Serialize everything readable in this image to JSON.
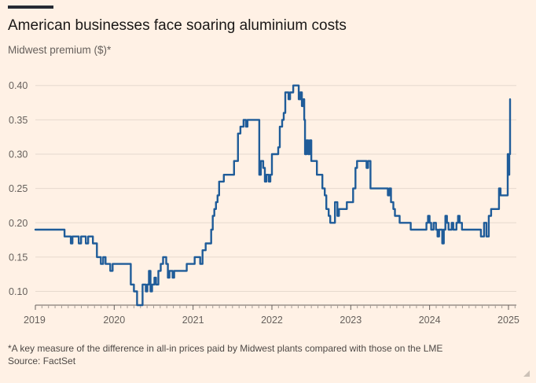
{
  "header": {
    "title": "American businesses face soaring aluminium costs",
    "subtitle": "Midwest premium ($)*"
  },
  "footer": {
    "footnote": "*A key measure of the difference in all-in prices paid by Midwest plants compared with those on the LME",
    "source": "Source: FactSet"
  },
  "colors": {
    "line": "#1F5C99",
    "grid": "#E6D9CE",
    "axis": "#66605C",
    "background": "#FFF1E5"
  },
  "chart_data": {
    "type": "line",
    "title": "American businesses face soaring aluminium costs",
    "subtitle": "Midwest premium ($)*",
    "xlabel": "",
    "ylabel": "",
    "xlim": [
      2019.0,
      2025.1
    ],
    "ylim": [
      0.08,
      0.41
    ],
    "yticks": [
      0.1,
      0.15,
      0.2,
      0.25,
      0.3,
      0.35,
      0.4
    ],
    "ytick_labels": [
      "0.10",
      "0.15",
      "0.20",
      "0.25",
      "0.30",
      "0.35",
      "0.40"
    ],
    "xticks": [
      2019,
      2020,
      2021,
      2022,
      2023,
      2024,
      2025
    ],
    "xtick_labels": [
      "2019",
      "2020",
      "2021",
      "2022",
      "2023",
      "2024",
      "2025"
    ],
    "grid": true,
    "legend": "none",
    "series": [
      {
        "values": [
          [
            2019.0,
            0.19
          ],
          [
            2019.35,
            0.19
          ],
          [
            2019.37,
            0.18
          ],
          [
            2019.43,
            0.18
          ],
          [
            2019.45,
            0.17
          ],
          [
            2019.47,
            0.18
          ],
          [
            2019.52,
            0.18
          ],
          [
            2019.55,
            0.17
          ],
          [
            2019.58,
            0.18
          ],
          [
            2019.62,
            0.18
          ],
          [
            2019.64,
            0.17
          ],
          [
            2019.67,
            0.18
          ],
          [
            2019.71,
            0.18
          ],
          [
            2019.73,
            0.17
          ],
          [
            2019.76,
            0.17
          ],
          [
            2019.78,
            0.15
          ],
          [
            2019.81,
            0.15
          ],
          [
            2019.83,
            0.14
          ],
          [
            2019.86,
            0.15
          ],
          [
            2019.89,
            0.14
          ],
          [
            2019.93,
            0.14
          ],
          [
            2019.95,
            0.13
          ],
          [
            2019.98,
            0.14
          ],
          [
            2020.0,
            0.14
          ],
          [
            2020.02,
            0.14
          ],
          [
            2020.08,
            0.14
          ],
          [
            2020.1,
            0.14
          ],
          [
            2020.2,
            0.14
          ],
          [
            2020.21,
            0.11
          ],
          [
            2020.23,
            0.11
          ],
          [
            2020.25,
            0.1
          ],
          [
            2020.27,
            0.1
          ],
          [
            2020.29,
            0.08
          ],
          [
            2020.34,
            0.08
          ],
          [
            2020.36,
            0.11
          ],
          [
            2020.39,
            0.11
          ],
          [
            2020.4,
            0.1
          ],
          [
            2020.42,
            0.11
          ],
          [
            2020.44,
            0.13
          ],
          [
            2020.46,
            0.1
          ],
          [
            2020.48,
            0.11
          ],
          [
            2020.51,
            0.12
          ],
          [
            2020.53,
            0.11
          ],
          [
            2020.56,
            0.13
          ],
          [
            2020.59,
            0.14
          ],
          [
            2020.62,
            0.15
          ],
          [
            2020.66,
            0.14
          ],
          [
            2020.68,
            0.12
          ],
          [
            2020.7,
            0.13
          ],
          [
            2020.74,
            0.12
          ],
          [
            2020.76,
            0.13
          ],
          [
            2020.8,
            0.13
          ],
          [
            2020.82,
            0.13
          ],
          [
            2020.9,
            0.13
          ],
          [
            2020.92,
            0.14
          ],
          [
            2021.0,
            0.14
          ],
          [
            2021.02,
            0.15
          ],
          [
            2021.07,
            0.15
          ],
          [
            2021.09,
            0.14
          ],
          [
            2021.12,
            0.16
          ],
          [
            2021.16,
            0.17
          ],
          [
            2021.2,
            0.17
          ],
          [
            2021.23,
            0.19
          ],
          [
            2021.25,
            0.21
          ],
          [
            2021.27,
            0.22
          ],
          [
            2021.29,
            0.23
          ],
          [
            2021.31,
            0.24
          ],
          [
            2021.33,
            0.26
          ],
          [
            2021.37,
            0.26
          ],
          [
            2021.39,
            0.27
          ],
          [
            2021.5,
            0.27
          ],
          [
            2021.52,
            0.29
          ],
          [
            2021.55,
            0.29
          ],
          [
            2021.57,
            0.33
          ],
          [
            2021.6,
            0.34
          ],
          [
            2021.62,
            0.34
          ],
          [
            2021.64,
            0.35
          ],
          [
            2021.67,
            0.34
          ],
          [
            2021.69,
            0.35
          ],
          [
            2021.82,
            0.35
          ],
          [
            2021.84,
            0.27
          ],
          [
            2021.86,
            0.29
          ],
          [
            2021.89,
            0.28
          ],
          [
            2021.91,
            0.26
          ],
          [
            2021.93,
            0.27
          ],
          [
            2021.96,
            0.26
          ],
          [
            2021.98,
            0.27
          ],
          [
            2022.0,
            0.3
          ],
          [
            2022.05,
            0.3
          ],
          [
            2022.08,
            0.31
          ],
          [
            2022.1,
            0.34
          ],
          [
            2022.13,
            0.35
          ],
          [
            2022.15,
            0.36
          ],
          [
            2022.17,
            0.39
          ],
          [
            2022.19,
            0.39
          ],
          [
            2022.21,
            0.38
          ],
          [
            2022.23,
            0.39
          ],
          [
            2022.25,
            0.39
          ],
          [
            2022.27,
            0.4
          ],
          [
            2022.32,
            0.4
          ],
          [
            2022.34,
            0.38
          ],
          [
            2022.36,
            0.39
          ],
          [
            2022.38,
            0.37
          ],
          [
            2022.4,
            0.38
          ],
          [
            2022.41,
            0.35
          ],
          [
            2022.42,
            0.3
          ],
          [
            2022.44,
            0.32
          ],
          [
            2022.46,
            0.3
          ],
          [
            2022.48,
            0.32
          ],
          [
            2022.5,
            0.29
          ],
          [
            2022.55,
            0.29
          ],
          [
            2022.57,
            0.27
          ],
          [
            2022.62,
            0.27
          ],
          [
            2022.64,
            0.25
          ],
          [
            2022.67,
            0.24
          ],
          [
            2022.69,
            0.22
          ],
          [
            2022.72,
            0.21
          ],
          [
            2022.74,
            0.2
          ],
          [
            2022.78,
            0.2
          ],
          [
            2022.8,
            0.23
          ],
          [
            2022.83,
            0.21
          ],
          [
            2022.85,
            0.22
          ],
          [
            2022.93,
            0.22
          ],
          [
            2022.95,
            0.23
          ],
          [
            2023.0,
            0.23
          ],
          [
            2023.03,
            0.25
          ],
          [
            2023.06,
            0.28
          ],
          [
            2023.08,
            0.29
          ],
          [
            2023.18,
            0.29
          ],
          [
            2023.2,
            0.28
          ],
          [
            2023.22,
            0.29
          ],
          [
            2023.25,
            0.25
          ],
          [
            2023.45,
            0.25
          ],
          [
            2023.47,
            0.24
          ],
          [
            2023.49,
            0.25
          ],
          [
            2023.51,
            0.23
          ],
          [
            2023.54,
            0.22
          ],
          [
            2023.56,
            0.21
          ],
          [
            2023.6,
            0.21
          ],
          [
            2023.62,
            0.2
          ],
          [
            2023.74,
            0.2
          ],
          [
            2023.76,
            0.19
          ],
          [
            2023.95,
            0.19
          ],
          [
            2023.96,
            0.2
          ],
          [
            2023.98,
            0.21
          ],
          [
            2024.0,
            0.2
          ],
          [
            2024.02,
            0.19
          ],
          [
            2024.05,
            0.2
          ],
          [
            2024.08,
            0.19
          ],
          [
            2024.1,
            0.18
          ],
          [
            2024.12,
            0.19
          ],
          [
            2024.14,
            0.19
          ],
          [
            2024.16,
            0.17
          ],
          [
            2024.18,
            0.19
          ],
          [
            2024.2,
            0.21
          ],
          [
            2024.22,
            0.2
          ],
          [
            2024.24,
            0.19
          ],
          [
            2024.28,
            0.2
          ],
          [
            2024.3,
            0.19
          ],
          [
            2024.32,
            0.19
          ],
          [
            2024.34,
            0.2
          ],
          [
            2024.36,
            0.21
          ],
          [
            2024.38,
            0.2
          ],
          [
            2024.41,
            0.19
          ],
          [
            2024.63,
            0.19
          ],
          [
            2024.65,
            0.18
          ],
          [
            2024.69,
            0.2
          ],
          [
            2024.72,
            0.18
          ],
          [
            2024.75,
            0.21
          ],
          [
            2024.78,
            0.22
          ],
          [
            2024.86,
            0.22
          ],
          [
            2024.88,
            0.25
          ],
          [
            2024.9,
            0.24
          ],
          [
            2024.98,
            0.24
          ],
          [
            2024.99,
            0.3
          ],
          [
            2025.0,
            0.27
          ],
          [
            2025.01,
            0.3
          ],
          [
            2025.02,
            0.38
          ]
        ]
      }
    ]
  }
}
